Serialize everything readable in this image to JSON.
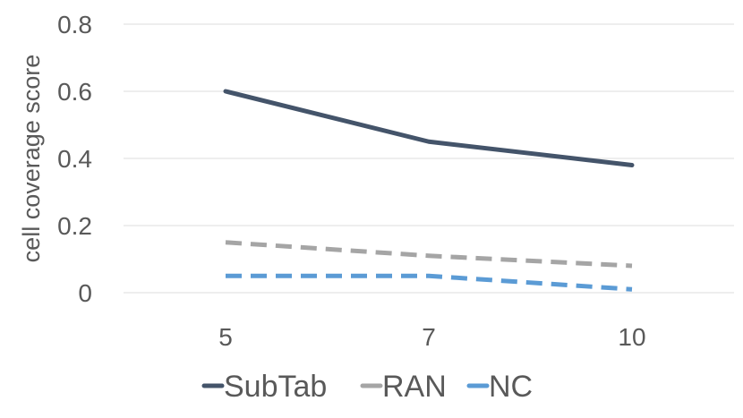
{
  "chart_data": {
    "type": "line",
    "title": "",
    "xlabel": "",
    "ylabel": "cell coverage score",
    "categories": [
      "5",
      "7",
      "10"
    ],
    "ylim": [
      0,
      0.8
    ],
    "yticks": [
      "0",
      "0.2",
      "0.4",
      "0.6",
      "0.8"
    ],
    "grid": true,
    "legend_position": "bottom",
    "series": [
      {
        "name": "SubTab",
        "values": [
          0.6,
          0.45,
          0.38
        ],
        "color": "#44546a",
        "dashed": false
      },
      {
        "name": "RAN",
        "values": [
          0.15,
          0.11,
          0.08
        ],
        "color": "#a5a5a5",
        "dashed": true
      },
      {
        "name": "NC",
        "values": [
          0.05,
          0.05,
          0.01
        ],
        "color": "#5b9bd5",
        "dashed": true
      }
    ]
  }
}
